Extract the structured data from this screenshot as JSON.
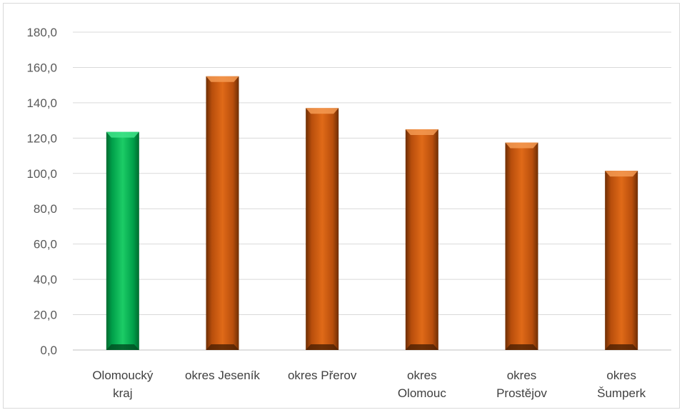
{
  "chart_data": {
    "type": "bar",
    "categories": [
      [
        "Olomoucký",
        "kraj"
      ],
      [
        "okres Jeseník"
      ],
      [
        "okres Přerov"
      ],
      [
        "okres",
        "Olomouc"
      ],
      [
        "okres",
        "Prostějov"
      ],
      [
        "okres",
        "Šumperk"
      ]
    ],
    "values": [
      123.5,
      155.0,
      137.0,
      125.0,
      117.5,
      101.5
    ],
    "bar_colors": [
      "#00b050",
      "#c55a11",
      "#c55a11",
      "#c55a11",
      "#c55a11",
      "#c55a11"
    ],
    "y_ticks": [
      "0,0",
      "20,0",
      "40,0",
      "60,0",
      "80,0",
      "100,0",
      "120,0",
      "140,0",
      "160,0",
      "180,0"
    ],
    "ylim": [
      0,
      180
    ],
    "y_step": 20,
    "grid": true,
    "legend": "none",
    "title": "",
    "xlabel": "",
    "ylabel": ""
  }
}
